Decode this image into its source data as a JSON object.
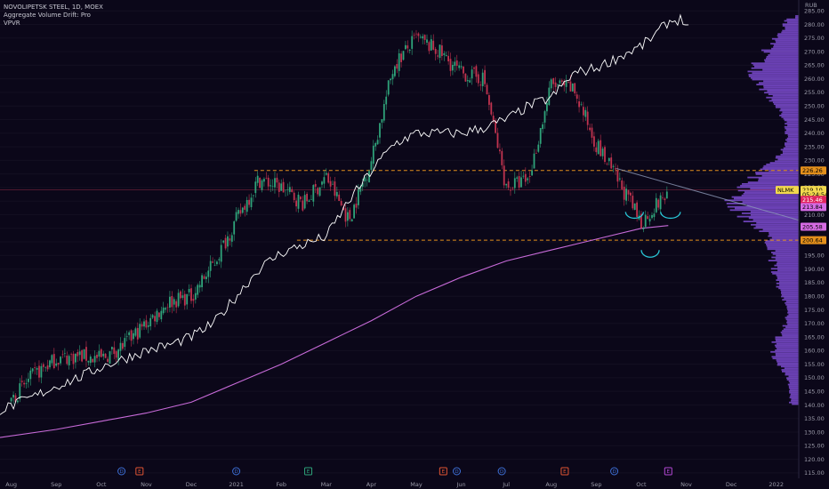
{
  "legend": {
    "symbol_line": "NOVOLIPETSK STEEL, 1D, MOEX",
    "indicator_1": "Aggregate Volume Drift: Pro",
    "indicator_2": "VPVR"
  },
  "currency": "RUB",
  "colors": {
    "background": "#0b0719",
    "candle_up": "#2fa37a",
    "candle_down": "#c0334f",
    "drift_line": "#ffffff",
    "ma_line": "#c76ad8",
    "trend_line": "#8d9ab8",
    "support_resistance": "#e38f1c",
    "vpvr": "#7d4bd1",
    "pattern_marks": "#28c6d6"
  },
  "chart_data": {
    "type": "candlestick",
    "title": "NOVOLIPETSK STEEL, 1D, MOEX",
    "ylim": [
      113,
      289
    ],
    "y_ticks": [
      115,
      120,
      125,
      130,
      135,
      140,
      145,
      150,
      155,
      160,
      165,
      170,
      175,
      180,
      185,
      190,
      195,
      200,
      205,
      210,
      215,
      220,
      225,
      230,
      235,
      240,
      245,
      250,
      255,
      260,
      265,
      270,
      275,
      280,
      285
    ],
    "x_ticks": [
      "Aug",
      "Sep",
      "Oct",
      "Nov",
      "Dec",
      "2021",
      "Feb",
      "Mar",
      "Apr",
      "May",
      "Jun",
      "Jul",
      "Aug",
      "Sep",
      "Oct",
      "Nov",
      "Dec",
      "2022"
    ],
    "x_tick_months": [
      0,
      1,
      2,
      3,
      4,
      5,
      6,
      7,
      8,
      9,
      10,
      11,
      12,
      13,
      14,
      15,
      16,
      17
    ],
    "x_range_months": [
      -0.25,
      17.5
    ],
    "price_path": [
      [
        0,
        142
      ],
      [
        0.5,
        151
      ],
      [
        1,
        157
      ],
      [
        1.5,
        158
      ],
      [
        2,
        157
      ],
      [
        2.5,
        162
      ],
      [
        3,
        170
      ],
      [
        3.5,
        178
      ],
      [
        4,
        180
      ],
      [
        4.5,
        192
      ],
      [
        5,
        208
      ],
      [
        5.5,
        223
      ],
      [
        6,
        220
      ],
      [
        6.5,
        214
      ],
      [
        7,
        224
      ],
      [
        7.5,
        208
      ],
      [
        8,
        230
      ],
      [
        8.5,
        265
      ],
      [
        9,
        275
      ],
      [
        9.5,
        270
      ],
      [
        10,
        262
      ],
      [
        10.5,
        260
      ],
      [
        11,
        220
      ],
      [
        11.5,
        223
      ],
      [
        12,
        258
      ],
      [
        12.5,
        256
      ],
      [
        13,
        236
      ],
      [
        13.5,
        222
      ],
      [
        14,
        207
      ],
      [
        14.3,
        213
      ],
      [
        14.6,
        218
      ]
    ],
    "drift_path": [
      [
        -0.25,
        138
      ],
      [
        0.5,
        143
      ],
      [
        1,
        147
      ],
      [
        1.5,
        150
      ],
      [
        2,
        154
      ],
      [
        2.5,
        157
      ],
      [
        3,
        160
      ],
      [
        3.5,
        162
      ],
      [
        4,
        165
      ],
      [
        4.5,
        170
      ],
      [
        5,
        180
      ],
      [
        5.5,
        190
      ],
      [
        6,
        196
      ],
      [
        6.5,
        199
      ],
      [
        7,
        202
      ],
      [
        7.5,
        215
      ],
      [
        8,
        226
      ],
      [
        8.5,
        236
      ],
      [
        9,
        240
      ],
      [
        9.5,
        240
      ],
      [
        10,
        240
      ],
      [
        10.5,
        242
      ],
      [
        11,
        245
      ],
      [
        11.5,
        250
      ],
      [
        12,
        253
      ],
      [
        12.5,
        262
      ],
      [
        13,
        264
      ],
      [
        13.5,
        268
      ],
      [
        14,
        272
      ],
      [
        14.3,
        276
      ],
      [
        14.6,
        281
      ],
      [
        14.9,
        282
      ],
      [
        15.1,
        278
      ]
    ],
    "ma_path": [
      [
        -0.25,
        128
      ],
      [
        1,
        131
      ],
      [
        2,
        134
      ],
      [
        3,
        137
      ],
      [
        4,
        141
      ],
      [
        5,
        148
      ],
      [
        6,
        155
      ],
      [
        7,
        163
      ],
      [
        8,
        171
      ],
      [
        9,
        180
      ],
      [
        10,
        187
      ],
      [
        11,
        193
      ],
      [
        12,
        197
      ],
      [
        13,
        201
      ],
      [
        14,
        205
      ],
      [
        14.6,
        206
      ]
    ],
    "levels": [
      {
        "name": "resistance",
        "value": 226.26,
        "from": 5.4
      },
      {
        "name": "support",
        "value": 200.64,
        "from": 6.35
      }
    ],
    "trend_line": [
      [
        13.45,
        227
      ],
      [
        17.5,
        208
      ]
    ],
    "price_labels": [
      {
        "label": "226.26",
        "value": 226.26,
        "color": "#e38f1c",
        "text_color": "#000000"
      },
      {
        "label": "NLMK",
        "value": 219.1,
        "color": "#f2d94e",
        "text_color": "#000000",
        "side": "left"
      },
      {
        "label": "219.10",
        "value": 219.1,
        "color": "#f2d94e",
        "text_color": "#000000"
      },
      {
        "label": "05:24:54",
        "value": 217.4,
        "color": "#f2d94e",
        "text_color": "#000000"
      },
      {
        "label": "215.46",
        "value": 215.46,
        "color": "#e0245e",
        "text_color": "#ffffff"
      },
      {
        "label": "213.84",
        "value": 212.8,
        "color": "#d56be3",
        "text_color": "#000000"
      },
      {
        "label": "205.58",
        "value": 205.58,
        "color": "#d56be3",
        "text_color": "#000000"
      },
      {
        "label": "200.64",
        "value": 200.64,
        "color": "#e38f1c",
        "text_color": "#000000"
      }
    ],
    "event_markers": [
      {
        "month": 2.45,
        "letter": "D",
        "kind": "dividend"
      },
      {
        "month": 2.85,
        "letter": "E",
        "kind": "earnings"
      },
      {
        "month": 5.0,
        "letter": "D",
        "kind": "dividend"
      },
      {
        "month": 6.6,
        "letter": "E",
        "kind": "earnings-green"
      },
      {
        "month": 9.6,
        "letter": "E",
        "kind": "earnings"
      },
      {
        "month": 9.9,
        "letter": "D",
        "kind": "dividend"
      },
      {
        "month": 10.9,
        "letter": "D",
        "kind": "dividend"
      },
      {
        "month": 12.3,
        "letter": "E",
        "kind": "earnings"
      },
      {
        "month": 13.4,
        "letter": "D",
        "kind": "dividend"
      },
      {
        "month": 14.6,
        "letter": "E",
        "kind": "earnings-purple"
      }
    ]
  }
}
